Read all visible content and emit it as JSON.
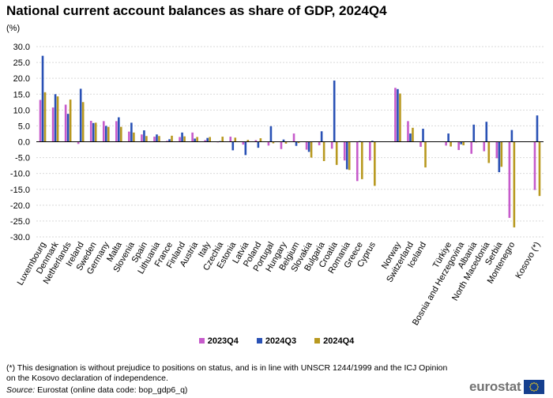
{
  "chart_data": {
    "type": "bar",
    "title": "National current account balances as share of GDP, 2024Q4",
    "ylabel": "(%)",
    "ylim": [
      -30,
      30
    ],
    "yticks": [
      "30.0",
      "25.0",
      "20.0",
      "15.0",
      "10.0",
      "5.0",
      "0.0",
      "-5.0",
      "-10.0",
      "-15.0",
      "-20.0",
      "-25.0",
      "-30.0"
    ],
    "grid": true,
    "legend_position": "bottom",
    "categories": [
      "Luxembourg",
      "Denmark",
      "Netherlands",
      "Ireland",
      "Sweden",
      "Germany",
      "Malta",
      "Slovenia",
      "Spain",
      "Lithuania",
      "France",
      "Finland",
      "Austria",
      "Italy",
      "Czechia",
      "Estonia",
      "Latvia",
      "Poland",
      "Portugal",
      "Hungary",
      "Belgium",
      "Slovakia",
      "Bulgaria",
      "Croatia",
      "Romania",
      "Greece",
      "Cyprus",
      "",
      "Norway",
      "Switzerland",
      "Iceland",
      "",
      "Türkiye",
      "Bosnia and Herzegovina",
      "Albania",
      "North Macedonia",
      "Serbia",
      "Montenegro",
      "",
      "Kosovo (*)"
    ],
    "series": [
      {
        "name": "2023Q4",
        "color": "#c65bcb",
        "values": [
          13.2,
          10.8,
          11.7,
          -0.7,
          6.6,
          6.5,
          6.5,
          3.2,
          2.3,
          1.6,
          0.3,
          1.5,
          2.9,
          0.5,
          -0.2,
          1.6,
          -0.9,
          0.5,
          -1.2,
          -2.3,
          2.6,
          -2.5,
          -1.1,
          -2.2,
          -5.9,
          -12.4,
          -5.9,
          null,
          17.0,
          6.5,
          -1.6,
          null,
          -1.2,
          -2.6,
          -3.8,
          -3.0,
          -5.2,
          -24.0,
          null,
          -15.2
        ]
      },
      {
        "name": "2024Q3",
        "color": "#2951b5",
        "values": [
          27.1,
          15.0,
          8.8,
          16.7,
          5.9,
          5.0,
          7.7,
          6.0,
          3.6,
          2.3,
          0.8,
          2.9,
          1.0,
          1.2,
          0.2,
          -2.7,
          -4.2,
          -1.9,
          4.9,
          0.7,
          -1.3,
          -3.2,
          3.3,
          19.3,
          -8.7,
          0.2,
          0.3,
          null,
          16.6,
          2.6,
          4.1,
          null,
          2.6,
          -0.8,
          5.4,
          6.3,
          -9.6,
          3.7,
          null,
          8.3
        ]
      },
      {
        "name": "2024Q4",
        "color": "#b89920",
        "values": [
          15.6,
          14.3,
          13.3,
          12.5,
          6.0,
          4.7,
          4.7,
          2.9,
          1.8,
          1.8,
          1.9,
          1.7,
          1.5,
          1.5,
          1.6,
          1.3,
          0.6,
          1.1,
          -0.5,
          -0.6,
          -0.4,
          -5.0,
          -6.1,
          -7.3,
          -8.9,
          -11.8,
          -13.9,
          null,
          15.2,
          4.4,
          -8.1,
          null,
          -1.5,
          -1.1,
          -0.2,
          -6.7,
          -7.9,
          -27.0,
          null,
          -17.1
        ]
      }
    ]
  },
  "footnote": "(*) This designation is without prejudice to positions on status, and is in line with UNSCR 1244/1999 and the ICJ Opinion on the Kosovo declaration of independence.",
  "source": {
    "label": "Source:",
    "text": "Eurostat (online data code: bop_gdp6_q)"
  },
  "logo": "eurostat"
}
